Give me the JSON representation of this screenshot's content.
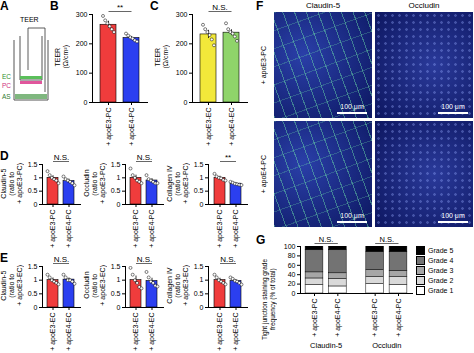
{
  "diagram": {
    "panel_label": "A",
    "labels": [
      "TEER",
      "EC",
      "PC",
      "AS"
    ]
  },
  "image_panel": {
    "panel_label": "F",
    "columns": [
      "Claudin-5",
      "Occludin"
    ],
    "rows": [
      "+ apoE3-PC",
      "+ apoE4-PC"
    ],
    "scale_bar": "100 μm"
  },
  "chart_data": [
    {
      "type": "bar",
      "panel_label": "B",
      "y_label": "TEER\n(Ω/cm²)",
      "categories": [
        "+ apoE3-PC",
        "+ apoE4-PC"
      ],
      "values": [
        265,
        220
      ],
      "errors": [
        12,
        5
      ],
      "points": [
        [
          295,
          280,
          270,
          260,
          250,
          240
        ],
        [
          235,
          228,
          222,
          218,
          212,
          208
        ]
      ],
      "colors": [
        "#f03c3c",
        "#2b3ff0"
      ],
      "ylim": [
        0,
        300
      ],
      "yticks": [
        0,
        100,
        200,
        300
      ],
      "annotation": "**"
    },
    {
      "type": "bar",
      "panel_label": "C",
      "y_label": "TEER\n(Ω/cm²)",
      "categories": [
        "+ apoE3-EC",
        "+ apoE4-EC"
      ],
      "values": [
        232,
        238
      ],
      "errors": [
        14,
        10
      ],
      "points": [
        [
          265,
          250,
          240,
          230,
          215,
          195
        ],
        [
          270,
          250,
          240,
          235,
          225,
          210
        ]
      ],
      "colors": [
        "#f2e83a",
        "#8fd46a"
      ],
      "ylim": [
        0,
        300
      ],
      "yticks": [
        0,
        100,
        200,
        300
      ],
      "annotation": "N.S."
    },
    {
      "type": "bar",
      "panel_label": "D",
      "y_label": "Claudin-5\n(ratio to\n+ apoE3-PC)",
      "categories": [
        "+ apoE3-PC",
        "+ apoE4-PC"
      ],
      "values": [
        1.0,
        0.88
      ],
      "errors": [
        0.08,
        0.07
      ],
      "points": [
        [
          1.25,
          1.1,
          1.0,
          0.95,
          0.9,
          0.8
        ],
        [
          1.05,
          0.95,
          0.9,
          0.85,
          0.8,
          0.72
        ]
      ],
      "colors": [
        "#f03c3c",
        "#2b3ff0"
      ],
      "ylim": [
        0,
        1.5
      ],
      "yticks": [
        0,
        0.5,
        1,
        1.5
      ],
      "annotation": "N.S."
    },
    {
      "type": "bar",
      "y_label": "Occludin\n(ratio to\n+ apoE3-PC)",
      "categories": [
        "+ apoE3-PC",
        "+ apoE4-PC"
      ],
      "values": [
        1.0,
        0.9
      ],
      "errors": [
        0.1,
        0.07
      ],
      "points": [
        [
          1.35,
          1.1,
          1.0,
          0.9,
          0.85,
          0.8
        ],
        [
          1.1,
          0.95,
          0.9,
          0.85,
          0.8,
          0.8
        ]
      ],
      "colors": [
        "#f03c3c",
        "#2b3ff0"
      ],
      "ylim": [
        0,
        1.5
      ],
      "yticks": [
        0,
        0.5,
        1,
        1.5
      ],
      "annotation": "N.S."
    },
    {
      "type": "bar",
      "y_label": "Collagen IV\n(ratio to\n+ apoE3-PC)",
      "categories": [
        "+ apoE3-PC",
        "+ apoE4-PC"
      ],
      "values": [
        1.0,
        0.78
      ],
      "errors": [
        0.06,
        0.03
      ],
      "points": [
        [
          1.15,
          1.05,
          1.0,
          0.98,
          0.92,
          0.9
        ],
        [
          0.85,
          0.82,
          0.78,
          0.76,
          0.74,
          0.73
        ]
      ],
      "colors": [
        "#f03c3c",
        "#2b3ff0"
      ],
      "ylim": [
        0,
        1.5
      ],
      "yticks": [
        0,
        0.5,
        1,
        1.5
      ],
      "annotation": "**"
    },
    {
      "type": "bar",
      "panel_label": "E",
      "y_label": "Claudin-5\n(ratio to\n+ apoE3-EC)",
      "categories": [
        "+ apoE3-EC",
        "+ apoE4-EC"
      ],
      "values": [
        1.0,
        1.02
      ],
      "errors": [
        0.08,
        0.06
      ],
      "points": [
        [
          1.2,
          1.1,
          1.0,
          0.95,
          0.9,
          0.85
        ],
        [
          1.2,
          1.1,
          1.0,
          1.0,
          0.95,
          0.87
        ]
      ],
      "colors": [
        "#f03c3c",
        "#2b3ff0"
      ],
      "ylim": [
        0,
        1.5
      ],
      "yticks": [
        0,
        0.5,
        1,
        1.5
      ],
      "annotation": "N.S."
    },
    {
      "type": "bar",
      "y_label": "Occludin\n(ratio to\n+ apoE3-EC)",
      "categories": [
        "+ apoE3-EC",
        "+ apoE4-EC"
      ],
      "values": [
        1.0,
        0.97
      ],
      "errors": [
        0.15,
        0.1
      ],
      "points": [
        [
          1.45,
          1.2,
          1.0,
          0.9,
          0.75,
          0.7
        ],
        [
          1.3,
          1.1,
          0.95,
          0.9,
          0.8,
          0.77
        ]
      ],
      "colors": [
        "#f03c3c",
        "#2b3ff0"
      ],
      "ylim": [
        0,
        1.5
      ],
      "yticks": [
        0,
        0.5,
        1,
        1.5
      ],
      "annotation": "N.S."
    },
    {
      "type": "bar",
      "y_label": "Collagen IV\n(ratio to\n+ apoE3-EC)",
      "categories": [
        "+ apoE3-EC",
        "+ apoE4-EC"
      ],
      "values": [
        1.0,
        0.97
      ],
      "errors": [
        0.07,
        0.05
      ],
      "points": [
        [
          1.2,
          1.1,
          1.0,
          0.95,
          0.9,
          0.85
        ],
        [
          1.1,
          1.05,
          0.98,
          0.95,
          0.9,
          0.84
        ]
      ],
      "colors": [
        "#f03c3c",
        "#2b3ff0"
      ],
      "ylim": [
        0,
        1.5
      ],
      "yticks": [
        0,
        0.5,
        1,
        1.5
      ],
      "annotation": "N.S."
    },
    {
      "type": "bar",
      "stacked": true,
      "panel_label": "G",
      "y_label": "Tight junction staining grade\nfrequency (% of total)",
      "categories": [
        "+ apoE3-PC",
        "+ apoE4-PC",
        "+ apoE3-PC",
        "+ apoE4-PC"
      ],
      "groups": [
        "Claudin-5",
        "Occludin"
      ],
      "annotations": [
        "N.S.",
        "N.S."
      ],
      "series": [
        {
          "name": "Grade 1",
          "color": "#ffffff",
          "values": [
            18,
            15,
            20,
            18
          ]
        },
        {
          "name": "Grade 2",
          "color": "#d9d9d9",
          "values": [
            14,
            16,
            15,
            17
          ]
        },
        {
          "name": "Grade 3",
          "color": "#a6a6a6",
          "values": [
            13,
            12,
            15,
            13
          ]
        },
        {
          "name": "Grade 4",
          "color": "#737373",
          "values": [
            47,
            49,
            38,
            40
          ]
        },
        {
          "name": "Grade 5",
          "color": "#000000",
          "values": [
            8,
            8,
            12,
            12
          ]
        }
      ],
      "ylim": [
        0,
        100
      ],
      "yticks": [
        0,
        20,
        40,
        60,
        80,
        100
      ],
      "legend": "right"
    }
  ]
}
